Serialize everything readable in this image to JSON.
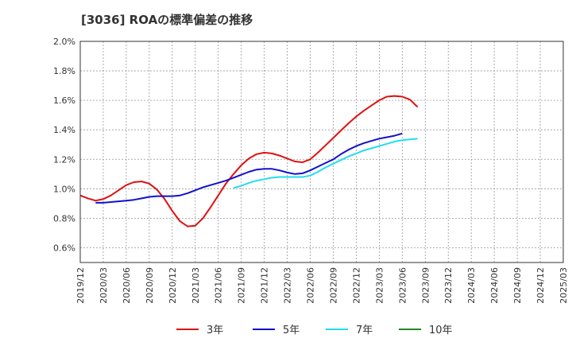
{
  "chart_data": {
    "type": "line",
    "title": "[3036]  ROAの標準偏差の推移",
    "xlabel": "",
    "ylabel": "",
    "ylim": [
      0.5,
      2.0
    ],
    "y_ticks": [
      "0.6%",
      "0.8%",
      "1.0%",
      "1.2%",
      "1.4%",
      "1.6%",
      "1.8%",
      "2.0%"
    ],
    "x_ticks": [
      "2019/12",
      "2020/03",
      "2020/06",
      "2020/09",
      "2020/12",
      "2021/03",
      "2021/06",
      "2021/09",
      "2021/12",
      "2022/03",
      "2022/06",
      "2022/09",
      "2022/12",
      "2023/03",
      "2023/06",
      "2023/09",
      "2023/12",
      "2024/03",
      "2024/06",
      "2024/09",
      "2024/12",
      "2025/03"
    ],
    "grid": true,
    "legend_position": "bottom",
    "series": [
      {
        "name": "3年",
        "color": "#dd1111",
        "start_index": 0,
        "values": [
          0.955,
          0.935,
          0.92,
          0.93,
          0.955,
          0.99,
          1.025,
          1.045,
          1.05,
          1.035,
          0.995,
          0.93,
          0.85,
          0.78,
          0.745,
          0.75,
          0.8,
          0.875,
          0.955,
          1.035,
          1.1,
          1.16,
          1.205,
          1.235,
          1.245,
          1.24,
          1.225,
          1.205,
          1.185,
          1.18,
          1.2,
          1.245,
          1.295,
          1.345,
          1.395,
          1.445,
          1.49,
          1.53,
          1.565,
          1.6,
          1.625,
          1.63,
          1.625,
          1.605,
          1.555
        ]
      },
      {
        "name": "5年",
        "color": "#1111cc",
        "start_index": 2,
        "values": [
          0.905,
          0.905,
          0.91,
          0.915,
          0.92,
          0.925,
          0.935,
          0.945,
          0.95,
          0.95,
          0.95,
          0.955,
          0.97,
          0.99,
          1.01,
          1.025,
          1.04,
          1.055,
          1.075,
          1.095,
          1.115,
          1.13,
          1.135,
          1.135,
          1.125,
          1.11,
          1.1,
          1.105,
          1.125,
          1.15,
          1.175,
          1.2,
          1.235,
          1.265,
          1.29,
          1.31,
          1.325,
          1.34,
          1.35,
          1.36,
          1.375
        ]
      },
      {
        "name": "7年",
        "color": "#22ddee",
        "start_index": 20,
        "values": [
          1.005,
          1.02,
          1.04,
          1.055,
          1.065,
          1.075,
          1.08,
          1.08,
          1.08,
          1.08,
          1.09,
          1.115,
          1.145,
          1.17,
          1.195,
          1.22,
          1.24,
          1.26,
          1.275,
          1.29,
          1.305,
          1.32,
          1.33,
          1.335,
          1.34
        ]
      },
      {
        "name": "10年",
        "color": "#228822",
        "start_index": 0,
        "values": []
      }
    ]
  }
}
